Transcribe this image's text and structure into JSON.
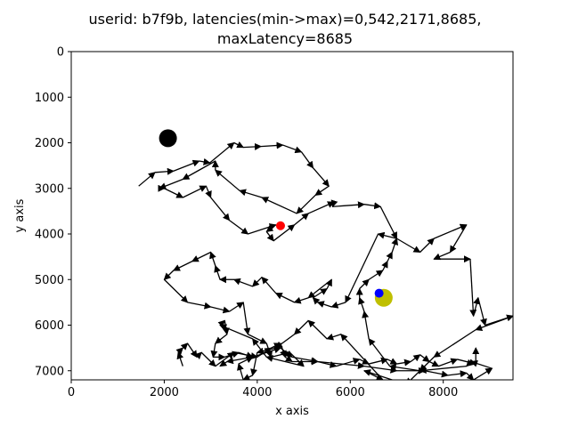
{
  "chart_data": {
    "type": "line",
    "title_lines": [
      "userid: b7f9b, latencies(min->max)=0,542,2171,8685,",
      "maxLatency=8685"
    ],
    "xlabel": "x axis",
    "ylabel": "y axis",
    "xlim": [
      0,
      9500
    ],
    "ylim": [
      0,
      7200
    ],
    "y_inverted": true,
    "x_ticks": [
      0,
      2000,
      4000,
      6000,
      8000
    ],
    "y_ticks": [
      0,
      1000,
      2000,
      3000,
      4000,
      5000,
      6000,
      7000
    ],
    "grid": false,
    "series": [
      {
        "style": "black arrows",
        "color": "#000000",
        "x": [
          1450,
          1800,
          2200,
          2750,
          2980,
          3500,
          3700,
          4080,
          4550,
          4950,
          5200,
          5540,
          5250,
          4850,
          4100,
          3620,
          3100,
          3100,
          2400,
          1900,
          2000,
          2400,
          2900,
          3000,
          3400,
          3800,
          4400,
          4200,
          4350,
          4800,
          5100,
          5650,
          5620,
          6300,
          6650,
          7000,
          7500,
          7800,
          8500,
          8150,
          7800,
          8580,
          8650,
          8750,
          8900,
          9500,
          8700,
          7800,
          7500,
          7200,
          6300,
          6700,
          5800,
          5500,
          5100,
          4800,
          4400,
          4000,
          3900,
          3700,
          3600,
          3900,
          4500,
          4750,
          5300,
          6300,
          7000,
          7600,
          8100,
          8500,
          8650,
          9050,
          8600,
          8500,
          7500,
          6850,
          6400,
          6300,
          6200,
          6200,
          6400,
          6700,
          6800,
          6900,
          7000,
          6600,
          5900,
          5600,
          5300,
          5200,
          5500,
          5600,
          5100,
          4800,
          4400,
          4100,
          3900,
          3500,
          3200,
          3100,
          3000,
          2600,
          2200,
          2000,
          2500,
          3000,
          3400,
          3700,
          3800,
          4200,
          4300,
          4700,
          5000,
          4200,
          3900,
          3200,
          3300,
          3350,
          3100,
          3050,
          3300,
          3600,
          3900,
          3350,
          3200
        ],
        "y": [
          2950,
          2650,
          2620,
          2400,
          2440,
          2000,
          2100,
          2080,
          2050,
          2200,
          2550,
          2950,
          3150,
          3550,
          3200,
          3050,
          2600,
          2400,
          2800,
          3000,
          3000,
          3200,
          2950,
          3200,
          3700,
          4000,
          3800,
          3950,
          4150,
          3800,
          3550,
          3300,
          3400,
          3350,
          3400,
          4100,
          4400,
          4100,
          3800,
          4400,
          4550,
          4550,
          5800,
          5400,
          6000,
          5800,
          6100,
          6700,
          7000,
          7300,
          7000,
          7200,
          6200,
          6300,
          5900,
          6200,
          6500,
          6600,
          7100,
          7200,
          6850,
          6700,
          6500,
          6700,
          6800,
          6900,
          7000,
          7000,
          7100,
          7050,
          7200,
          6950,
          6800,
          6900,
          7000,
          6900,
          6300,
          5700,
          5400,
          5200,
          5000,
          4800,
          4600,
          4400,
          4100,
          4000,
          5500,
          5600,
          5500,
          5400,
          5200,
          5000,
          5400,
          5500,
          5300,
          4950,
          5150,
          5000,
          5000,
          4700,
          4400,
          4600,
          4800,
          5000,
          5500,
          5600,
          5700,
          5500,
          6200,
          6400,
          6700,
          6600,
          6900,
          6700,
          6300,
          6000,
          5900,
          6200,
          6400,
          6700,
          6700,
          6600,
          6700,
          6800,
          6900
        ]
      },
      {
        "style": "black arrows",
        "color": "#000000",
        "x": [
          2400,
          2300,
          2400,
          2500,
          2700,
          2800,
          3100,
          3500,
          4000,
          4300,
          4500,
          4600,
          4750,
          5300,
          5700,
          6200,
          6400,
          6800,
          7000,
          7300,
          7500,
          7700,
          7900,
          8300,
          8700,
          8700
        ],
        "y": [
          6900,
          6600,
          6500,
          6400,
          6700,
          6600,
          6900,
          6600,
          6700,
          6500,
          6400,
          6700,
          6800,
          6800,
          6900,
          6750,
          6850,
          6750,
          6850,
          6800,
          6650,
          6800,
          6900,
          6750,
          6850,
          6500
        ]
      }
    ],
    "markers": [
      {
        "name": "start",
        "x": 2080,
        "y": 1900,
        "color": "#000000",
        "size": "large"
      },
      {
        "name": "end",
        "x": 6720,
        "y": 5400,
        "color": "#bfbf00",
        "size": "large"
      },
      {
        "name": "red-point",
        "x": 4500,
        "y": 3820,
        "color": "#ff0000",
        "size": "small"
      },
      {
        "name": "blue-point",
        "x": 6620,
        "y": 5300,
        "color": "#0000ff",
        "size": "small"
      }
    ]
  }
}
